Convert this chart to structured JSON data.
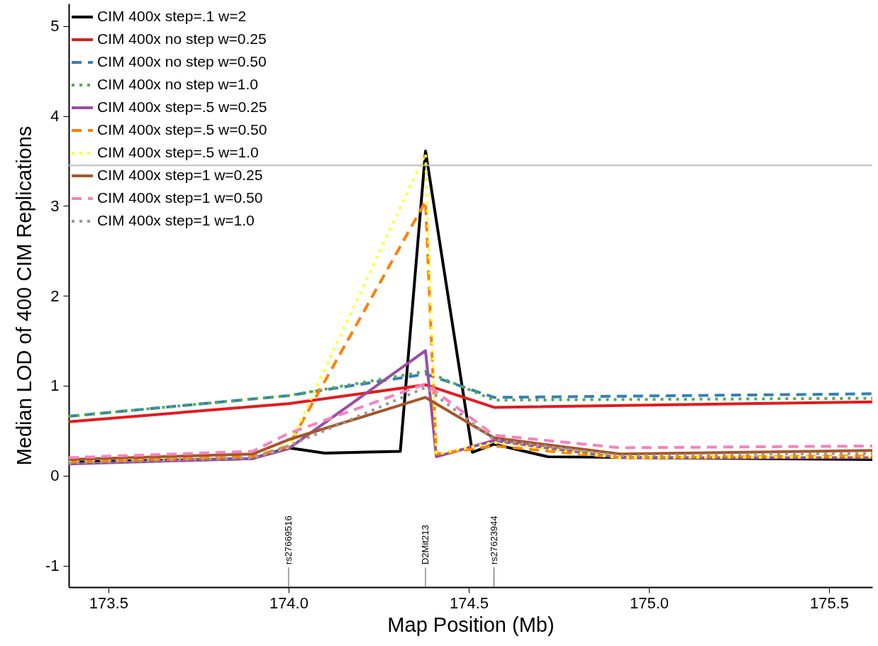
{
  "chart_data": {
    "type": "line",
    "xlabel": "Map Position (Mb)",
    "ylabel": "Median LOD of 400 CIM Replications",
    "xlim": [
      173.39,
      175.62
    ],
    "ylim": [
      -1.24,
      5.25
    ],
    "xticks": [
      173.5,
      {
        "value": 174,
        "label": "174.0"
      },
      174.5,
      {
        "value": 175,
        "label": "175.0"
      },
      175.5
    ],
    "yticks": [
      -1,
      0,
      1,
      2,
      3,
      4,
      5
    ],
    "legend": "top left",
    "ref_lines": [
      {
        "axis": "y",
        "value": 3.45,
        "color": "#bebebe"
      },
      {
        "axis": "x",
        "value": 174.0,
        "label": "rs27669516",
        "color": "#555555"
      },
      {
        "axis": "x",
        "value": 174.38,
        "label": "D2Mit213",
        "color": "#555555"
      },
      {
        "axis": "x",
        "value": 174.57,
        "label": "rs27623944",
        "color": "#555555"
      }
    ],
    "series": [
      {
        "name": "CIM 400x step=.1 w=2",
        "color": "#000000",
        "line_style": "solid",
        "x": [
          173.39,
          173.9,
          174.0,
          174.1,
          174.31,
          174.38,
          174.51,
          174.57,
          174.72,
          175.62
        ],
        "values": [
          0.15,
          0.19,
          0.31,
          0.25,
          0.27,
          3.61,
          0.26,
          0.35,
          0.21,
          0.18
        ]
      },
      {
        "name": "CIM 400x no step w=0.25",
        "color": "#e41a1c",
        "line_style": "solid",
        "x": [
          173.39,
          174.0,
          174.38,
          174.57,
          175.62
        ],
        "values": [
          0.6,
          0.8,
          1.01,
          0.76,
          0.82
        ]
      },
      {
        "name": "CIM 400x no step w=0.50",
        "color": "#377eb8",
        "line_style": "dashed",
        "x": [
          173.39,
          174.0,
          174.38,
          174.57,
          175.62
        ],
        "values": [
          0.66,
          0.89,
          1.13,
          0.87,
          0.91
        ]
      },
      {
        "name": "CIM 400x no step w=1.0",
        "color": "#4daf4a",
        "line_style": "dotted",
        "x": [
          173.39,
          174.0,
          174.38,
          174.57,
          175.62
        ],
        "values": [
          0.66,
          0.89,
          1.16,
          0.84,
          0.86
        ]
      },
      {
        "name": "CIM 400x step=.5 w=0.25",
        "color": "#984ea3",
        "line_style": "solid",
        "x": [
          173.39,
          173.9,
          174.0,
          174.38,
          174.41,
          174.57,
          174.92,
          175.62
        ],
        "values": [
          0.13,
          0.19,
          0.3,
          1.39,
          0.21,
          0.39,
          0.2,
          0.2
        ]
      },
      {
        "name": "CIM 400x step=.5 w=0.50",
        "color": "#ff7f00",
        "line_style": "dashed",
        "x": [
          173.39,
          173.9,
          174.0,
          174.38,
          174.41,
          174.57,
          174.92,
          175.62
        ],
        "values": [
          0.15,
          0.21,
          0.33,
          3.05,
          0.24,
          0.33,
          0.2,
          0.22
        ]
      },
      {
        "name": "CIM 400x step=.5 w=1.0",
        "color": "#ffff33",
        "line_style": "dotted",
        "x": [
          173.39,
          173.9,
          174.0,
          174.38,
          174.41,
          174.57,
          174.92,
          175.62
        ],
        "values": [
          0.15,
          0.2,
          0.32,
          3.58,
          0.24,
          0.37,
          0.2,
          0.21
        ]
      },
      {
        "name": "CIM 400x step=1  w=0.25",
        "color": "#a65628",
        "line_style": "solid",
        "x": [
          173.39,
          173.9,
          174.0,
          174.38,
          174.57,
          174.92,
          175.62
        ],
        "values": [
          0.18,
          0.24,
          0.4,
          0.87,
          0.42,
          0.24,
          0.28
        ]
      },
      {
        "name": "CIM 400x step=1  w=0.50",
        "color": "#f781bf",
        "line_style": "dashed",
        "x": [
          173.39,
          173.9,
          174.0,
          174.38,
          174.57,
          174.92,
          175.62
        ],
        "values": [
          0.2,
          0.27,
          0.47,
          1.02,
          0.45,
          0.31,
          0.33
        ]
      },
      {
        "name": "CIM 400x step=1  w=1.0",
        "color": "#999999",
        "line_style": "dotted",
        "x": [
          173.39,
          173.9,
          174.0,
          174.38,
          174.57,
          174.92,
          175.62
        ],
        "values": [
          0.14,
          0.2,
          0.33,
          0.98,
          0.4,
          0.22,
          0.25
        ]
      }
    ]
  }
}
